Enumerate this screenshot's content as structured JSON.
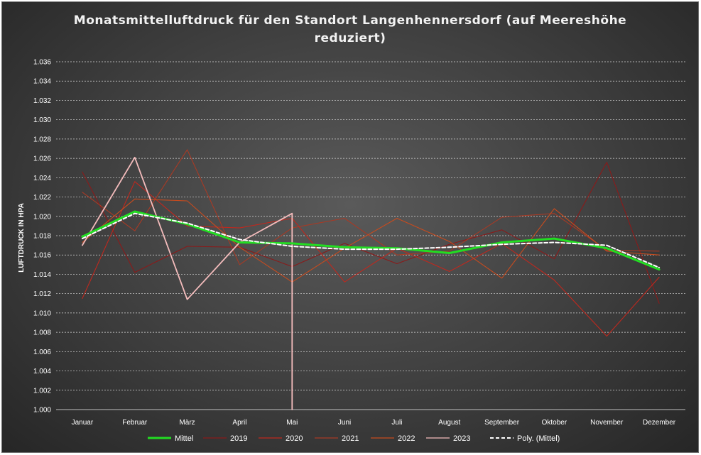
{
  "chart_data": {
    "type": "line",
    "title": "Monatsmittelluftdruck für den Standort Langenhennersdorf (auf Meereshöhe reduziert)",
    "xlabel": "",
    "ylabel": "LUFTDRUCK IN HPA",
    "ylim": [
      1000,
      1036
    ],
    "ytick_step": 2,
    "y_tick_labels": [
      "1.000",
      "1.002",
      "1.004",
      "1.006",
      "1.008",
      "1.010",
      "1.012",
      "1.014",
      "1.016",
      "1.018",
      "1.020",
      "1.022",
      "1.024",
      "1.026",
      "1.028",
      "1.030",
      "1.032",
      "1.034",
      "1.036"
    ],
    "categories": [
      "Januar",
      "Februar",
      "März",
      "April",
      "Mai",
      "Juni",
      "Juli",
      "August",
      "September",
      "Oktober",
      "November",
      "Dezember"
    ],
    "grid": true,
    "legend_position": "bottom",
    "series": [
      {
        "name": "2019",
        "color": "#8b1a1a",
        "values": [
          1024.6,
          1014.2,
          1016.9,
          1016.8,
          1014.8,
          1017.2,
          1015.1,
          1017.1,
          1018.6,
          1015.6,
          1025.6,
          1011.0
        ]
      },
      {
        "name": "2020",
        "color": "#c0281e",
        "values": [
          1011.5,
          1023.6,
          1019.0,
          1018.8,
          1019.8,
          1013.2,
          1016.7,
          1014.3,
          1017.2,
          1013.4,
          1007.6,
          1013.7
        ]
      },
      {
        "name": "2021",
        "color": "#a83a25",
        "values": [
          1022.5,
          1018.5,
          1026.9,
          1015.0,
          1018.8,
          1019.8,
          1016.0,
          1016.4,
          1019.9,
          1020.3,
          1016.5,
          1016.4
        ]
      },
      {
        "name": "2022",
        "color": "#c84b1e",
        "values": [
          1017.3,
          1021.8,
          1021.6,
          1016.8,
          1013.2,
          1016.7,
          1019.8,
          1017.4,
          1013.6,
          1020.8,
          1016.4,
          1016.0
        ]
      },
      {
        "name": "2023",
        "color": "#f4bcbc",
        "values": [
          1017.0,
          1026.1,
          1011.4,
          1017.3,
          1020.3,
          null,
          null,
          null,
          null,
          null,
          null,
          null
        ],
        "drop_to_axis_after_last": true
      },
      {
        "name": "Mittel",
        "color": "#22dd22",
        "values": [
          1017.9,
          1020.5,
          1019.2,
          1017.3,
          1017.2,
          1016.8,
          1016.7,
          1016.2,
          1017.3,
          1017.7,
          1016.7,
          1014.5
        ]
      },
      {
        "name": "Poly. (Mittel)",
        "color": "#ffffff",
        "dashed": true,
        "values": [
          1017.7,
          1020.3,
          1019.3,
          1017.6,
          1016.9,
          1016.6,
          1016.6,
          1016.8,
          1017.1,
          1017.3,
          1017.0,
          1014.7
        ]
      }
    ],
    "legend_order": [
      "Mittel",
      "2019",
      "2020",
      "2021",
      "2022",
      "2023",
      "Poly. (Mittel)"
    ]
  }
}
